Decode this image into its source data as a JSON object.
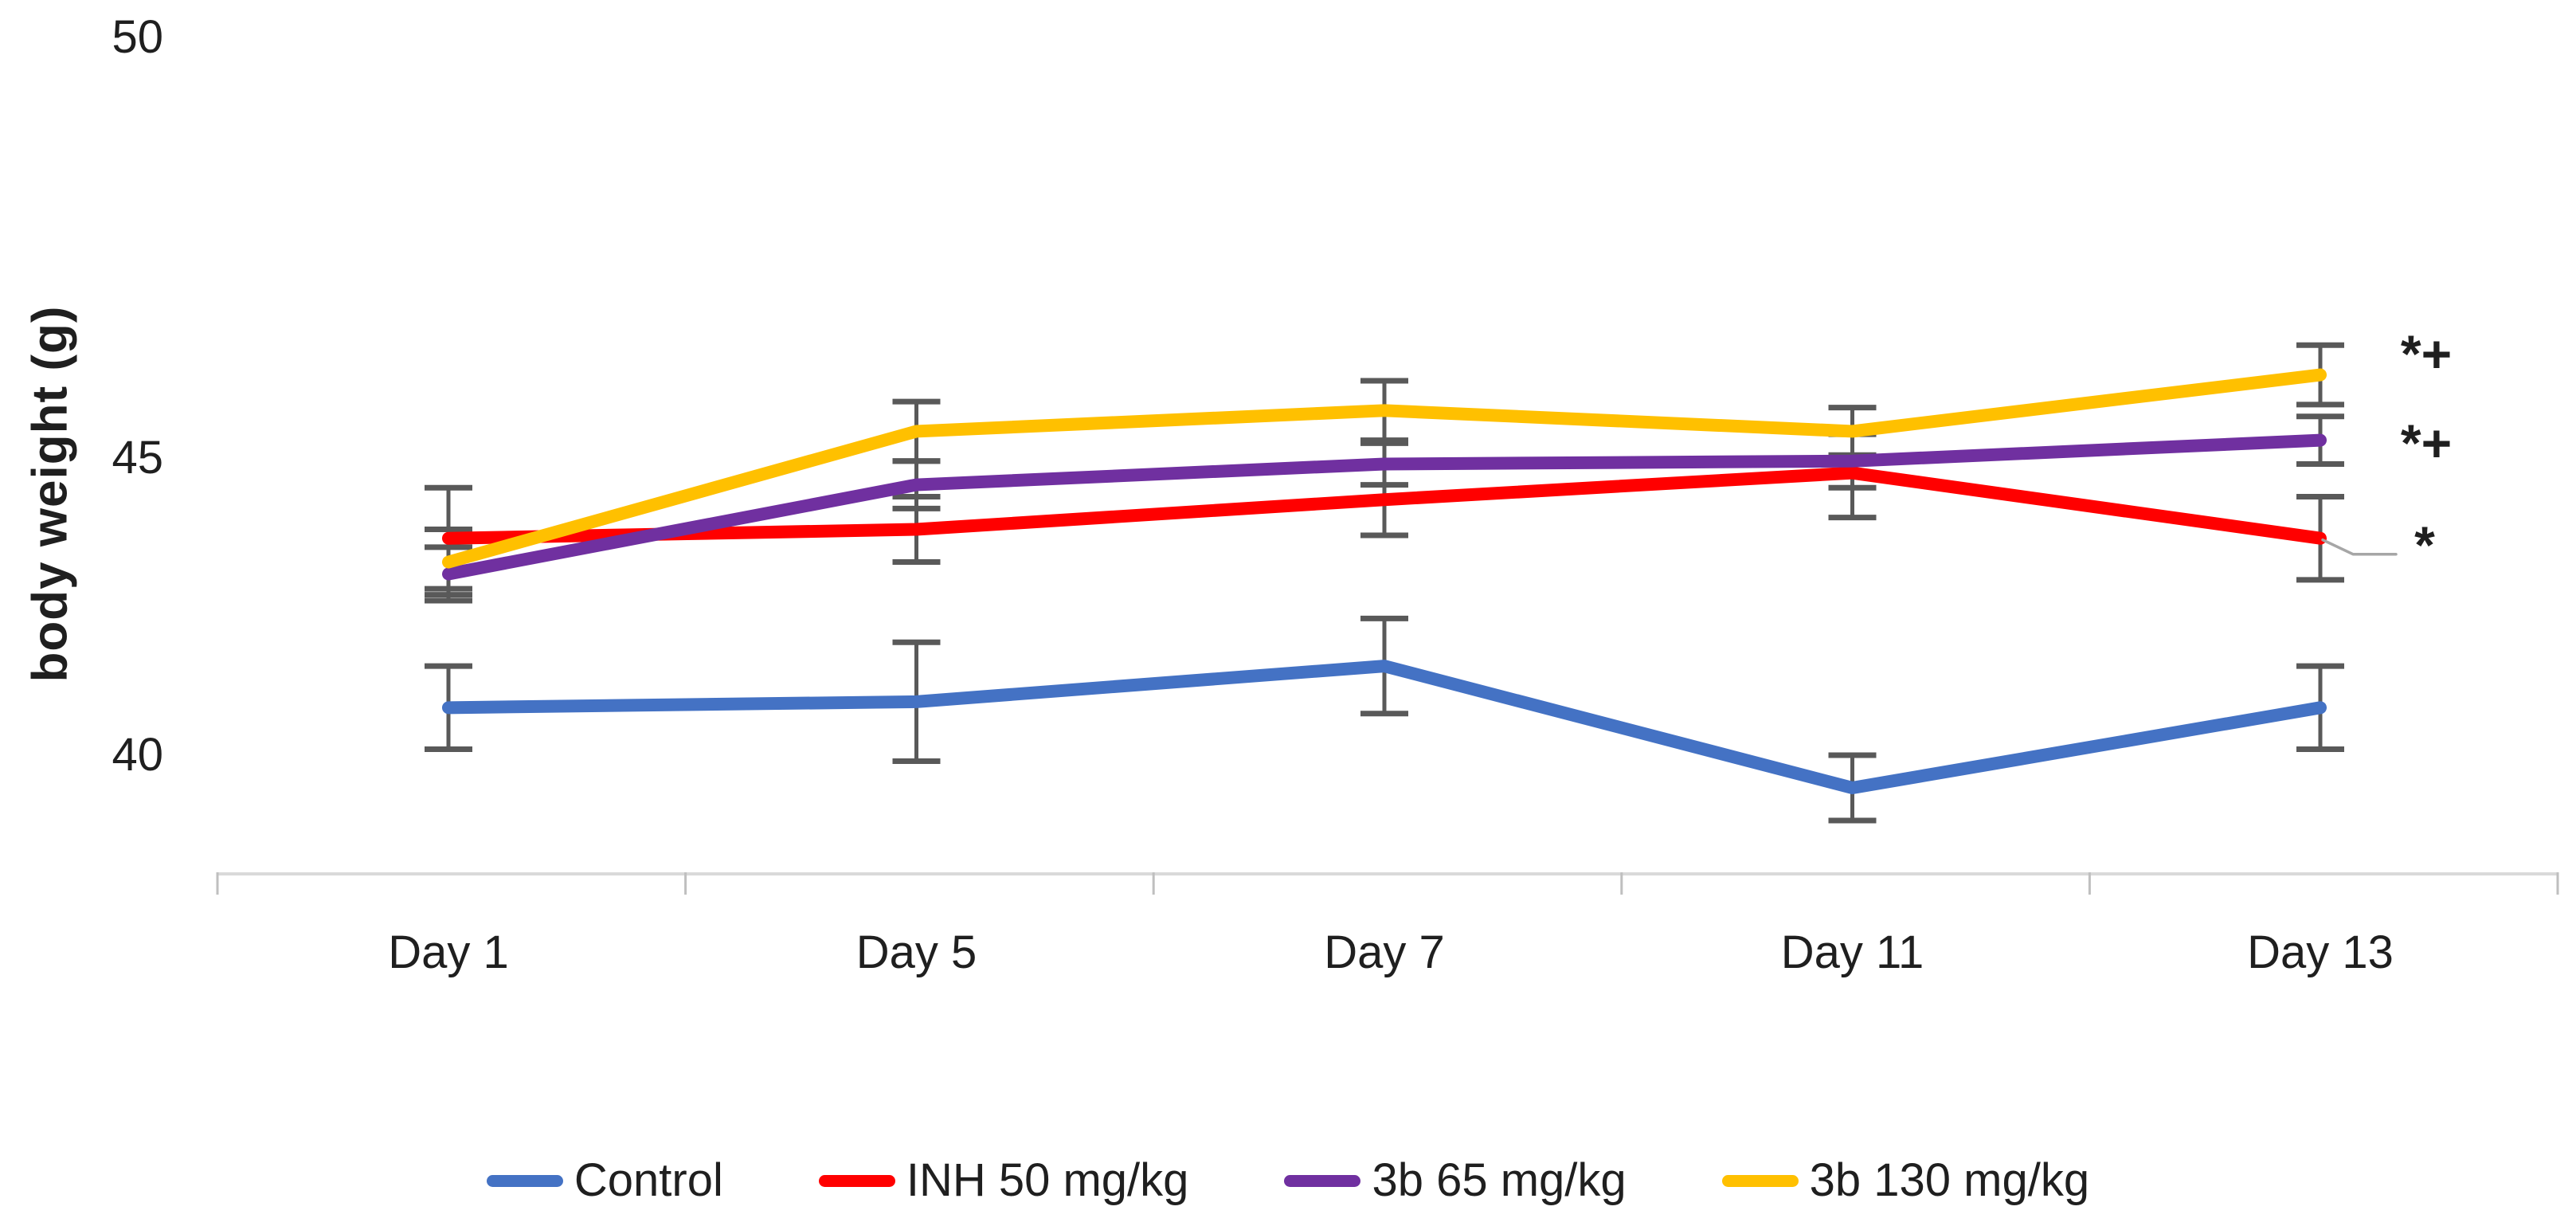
{
  "figure": {
    "background": "#ffffff"
  },
  "chart_data": {
    "type": "line",
    "title": "",
    "xlabel": "",
    "ylabel": "body weight (g)",
    "categories": [
      "Day 1",
      "Day 5",
      "Day 7",
      "Day 11",
      "Day 13"
    ],
    "y_tick_labels": [
      "50",
      "45",
      "40"
    ],
    "y_tick_values": [
      50,
      45,
      40
    ],
    "y_axis_visible_range": [
      40,
      50
    ],
    "grid": false,
    "legend_position": "bottom",
    "axis_line_color": "#d9d9d9",
    "tick_mark_color": "#bfbfbf",
    "error_bar_color": "#595959",
    "leader_line_color": "#a6a6a6",
    "text_color": "#1f1f1f",
    "series": [
      {
        "name": "Control",
        "color": "#4472c4",
        "values": [
          40.8,
          40.9,
          41.5,
          39.45,
          40.8
        ],
        "errors": [
          0.7,
          1.0,
          0.8,
          0.55,
          0.7
        ]
      },
      {
        "name": "INH 50 mg/kg",
        "color": "#ff0000",
        "values": [
          43.65,
          43.8,
          44.3,
          44.75,
          43.65
        ],
        "errors": [
          0.85,
          0.55,
          0.6,
          0.75,
          0.7
        ]
      },
      {
        "name": "3b 65 mg/kg",
        "color": "#7030a0",
        "values": [
          43.05,
          44.55,
          44.9,
          44.95,
          45.3
        ],
        "errors": [
          0.45,
          0.4,
          0.35,
          0.45,
          0.4
        ]
      },
      {
        "name": "3b 130 mg/kg",
        "color": "#ffc000",
        "values": [
          43.25,
          45.45,
          45.8,
          45.45,
          46.4
        ],
        "errors": [
          0.55,
          0.5,
          0.5,
          0.4,
          0.5
        ]
      }
    ],
    "annotations": [
      {
        "text": "*+",
        "target_series": "3b 130 mg/kg"
      },
      {
        "text": "*+",
        "target_series": "3b 65 mg/kg"
      },
      {
        "text": "*",
        "target_series": "INH 50 mg/kg",
        "has_leader_line": true
      }
    ]
  }
}
